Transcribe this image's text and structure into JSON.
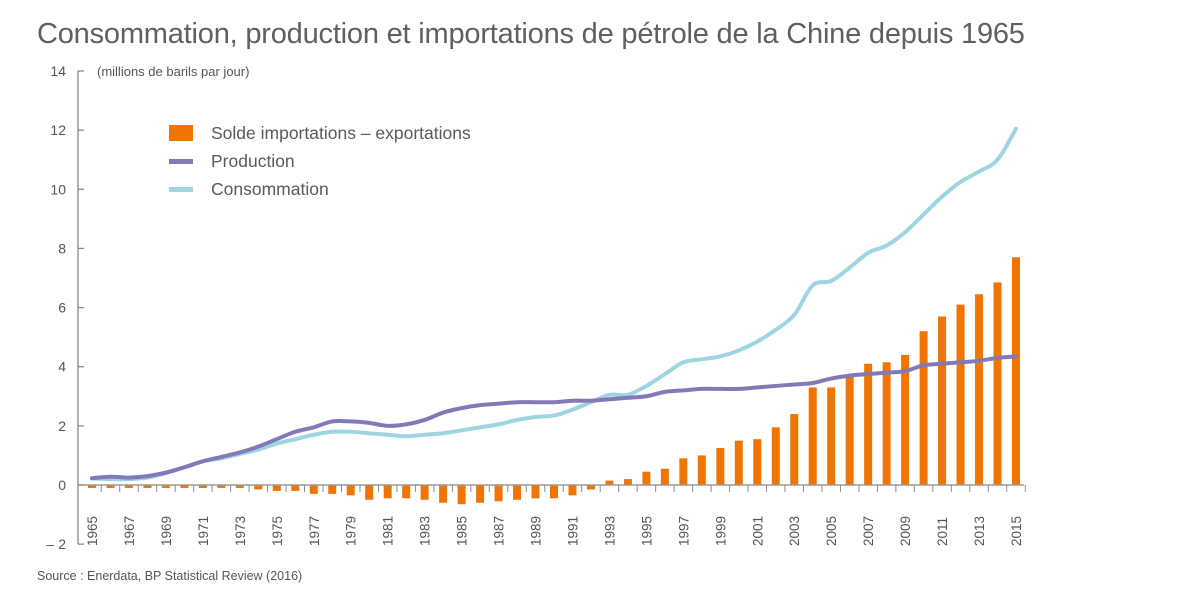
{
  "chart_data": {
    "type": "bar+line",
    "title": "Consommation, production et importations de pétrole de la Chine depuis 1965",
    "unit_label": "(millions de barils par jour)",
    "source": "Source : Enerdata, BP Statistical Review (2016)",
    "xlabel": "",
    "ylabel": "",
    "ylim": [
      -2,
      14
    ],
    "yticks": [
      -2,
      0,
      2,
      4,
      6,
      8,
      10,
      12,
      14
    ],
    "ytick_labels": [
      "– 2",
      "0",
      "2",
      "4",
      "6",
      "8",
      "10",
      "12",
      "14"
    ],
    "x": [
      1965,
      1966,
      1967,
      1968,
      1969,
      1970,
      1971,
      1972,
      1973,
      1974,
      1975,
      1976,
      1977,
      1978,
      1979,
      1980,
      1981,
      1982,
      1983,
      1984,
      1985,
      1986,
      1987,
      1988,
      1989,
      1990,
      1991,
      1992,
      1993,
      1994,
      1995,
      1996,
      1997,
      1998,
      1999,
      2000,
      2001,
      2002,
      2003,
      2004,
      2005,
      2006,
      2007,
      2008,
      2009,
      2010,
      2011,
      2012,
      2013,
      2014,
      2015
    ],
    "xtick_labels": [
      "1965",
      "1967",
      "1969",
      "1971",
      "1973",
      "1975",
      "1977",
      "1979",
      "1981",
      "1983",
      "1985",
      "1987",
      "1989",
      "1991",
      "1993",
      "1995",
      "1997",
      "1999",
      "2001",
      "2003",
      "2005",
      "2007",
      "2009",
      "2011",
      "2013",
      "2015"
    ],
    "legend_position": "top-left",
    "series": [
      {
        "name": "Solde importations – exportations",
        "kind": "bar",
        "color": "#f07400",
        "values": [
          -0.1,
          -0.1,
          -0.1,
          -0.1,
          -0.1,
          -0.1,
          -0.1,
          -0.1,
          -0.1,
          -0.15,
          -0.2,
          -0.2,
          -0.3,
          -0.3,
          -0.35,
          -0.5,
          -0.45,
          -0.45,
          -0.5,
          -0.6,
          -0.65,
          -0.6,
          -0.55,
          -0.5,
          -0.45,
          -0.45,
          -0.35,
          -0.15,
          0.15,
          0.2,
          0.45,
          0.55,
          0.9,
          1.0,
          1.25,
          1.5,
          1.55,
          1.95,
          2.4,
          3.3,
          3.3,
          3.75,
          4.1,
          4.15,
          4.4,
          5.2,
          5.7,
          6.1,
          6.45,
          6.85,
          7.7
        ]
      },
      {
        "name": "Production",
        "kind": "line",
        "color": "#8279b8",
        "values": [
          0.23,
          0.28,
          0.25,
          0.3,
          0.42,
          0.6,
          0.8,
          0.95,
          1.1,
          1.3,
          1.55,
          1.8,
          1.95,
          2.15,
          2.15,
          2.1,
          2.0,
          2.05,
          2.2,
          2.45,
          2.6,
          2.7,
          2.75,
          2.8,
          2.8,
          2.8,
          2.85,
          2.85,
          2.9,
          2.95,
          3.0,
          3.15,
          3.2,
          3.25,
          3.25,
          3.25,
          3.3,
          3.35,
          3.4,
          3.45,
          3.6,
          3.7,
          3.75,
          3.8,
          3.85,
          4.05,
          4.1,
          4.15,
          4.2,
          4.3,
          4.35
        ]
      },
      {
        "name": "Consommation",
        "kind": "line",
        "color": "#9fd5e0",
        "values": [
          0.22,
          0.2,
          0.2,
          0.25,
          0.4,
          0.6,
          0.8,
          0.9,
          1.05,
          1.2,
          1.4,
          1.55,
          1.7,
          1.8,
          1.8,
          1.75,
          1.7,
          1.65,
          1.7,
          1.75,
          1.85,
          1.95,
          2.05,
          2.2,
          2.3,
          2.35,
          2.55,
          2.8,
          3.05,
          3.05,
          3.35,
          3.75,
          4.15,
          4.25,
          4.35,
          4.55,
          4.85,
          5.25,
          5.75,
          6.75,
          6.9,
          7.35,
          7.85,
          8.1,
          8.55,
          9.15,
          9.75,
          10.25,
          10.6,
          11.0,
          12.05
        ]
      }
    ]
  }
}
